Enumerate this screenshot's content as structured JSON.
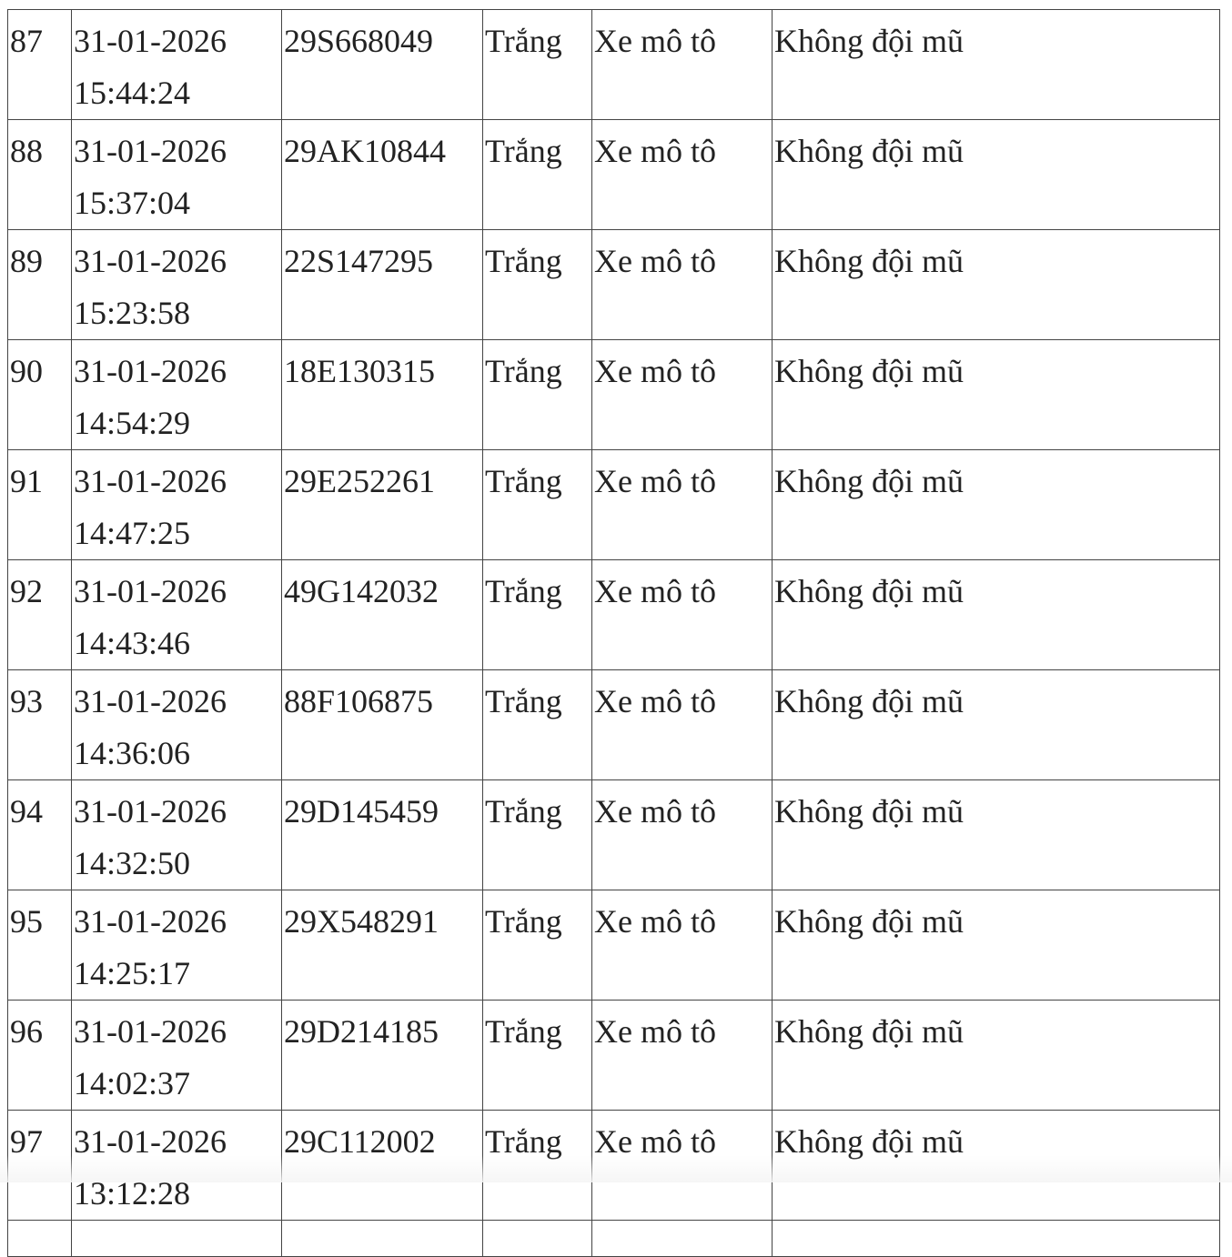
{
  "table": {
    "rows": [
      {
        "stt": "87",
        "date": "31-01-2026",
        "time": "15:44:24",
        "plate": "29S668049",
        "color": "Trắng",
        "vehicle": "Xe mô tô",
        "violation": "Không đội mũ"
      },
      {
        "stt": "88",
        "date": "31-01-2026",
        "time": "15:37:04",
        "plate": "29AK10844",
        "color": "Trắng",
        "vehicle": "Xe mô tô",
        "violation": "Không đội mũ"
      },
      {
        "stt": "89",
        "date": "31-01-2026",
        "time": "15:23:58",
        "plate": "22S147295",
        "color": "Trắng",
        "vehicle": "Xe mô tô",
        "violation": "Không đội mũ"
      },
      {
        "stt": "90",
        "date": "31-01-2026",
        "time": "14:54:29",
        "plate": "18E130315",
        "color": "Trắng",
        "vehicle": "Xe mô tô",
        "violation": "Không đội mũ"
      },
      {
        "stt": "91",
        "date": "31-01-2026",
        "time": "14:47:25",
        "plate": "29E252261",
        "color": "Trắng",
        "vehicle": "Xe mô tô",
        "violation": "Không đội mũ"
      },
      {
        "stt": "92",
        "date": "31-01-2026",
        "time": "14:43:46",
        "plate": "49G142032",
        "color": "Trắng",
        "vehicle": "Xe mô tô",
        "violation": "Không đội mũ"
      },
      {
        "stt": "93",
        "date": "31-01-2026",
        "time": "14:36:06",
        "plate": "88F106875",
        "color": "Trắng",
        "vehicle": "Xe mô tô",
        "violation": "Không đội mũ"
      },
      {
        "stt": "94",
        "date": "31-01-2026",
        "time": "14:32:50",
        "plate": "29D145459",
        "color": "Trắng",
        "vehicle": "Xe mô tô",
        "violation": "Không đội mũ"
      },
      {
        "stt": "95",
        "date": "31-01-2026",
        "time": "14:25:17",
        "plate": "29X548291",
        "color": "Trắng",
        "vehicle": "Xe mô tô",
        "violation": "Không đội mũ"
      },
      {
        "stt": "96",
        "date": "31-01-2026",
        "time": "14:02:37",
        "plate": "29D214185",
        "color": "Trắng",
        "vehicle": "Xe mô tô",
        "violation": "Không đội mũ"
      },
      {
        "stt": "97",
        "date": "31-01-2026",
        "time": "13:12:28",
        "plate": "29C112002",
        "color": "Trắng",
        "vehicle": "Xe mô tô",
        "violation": "Không đội mũ"
      }
    ]
  }
}
